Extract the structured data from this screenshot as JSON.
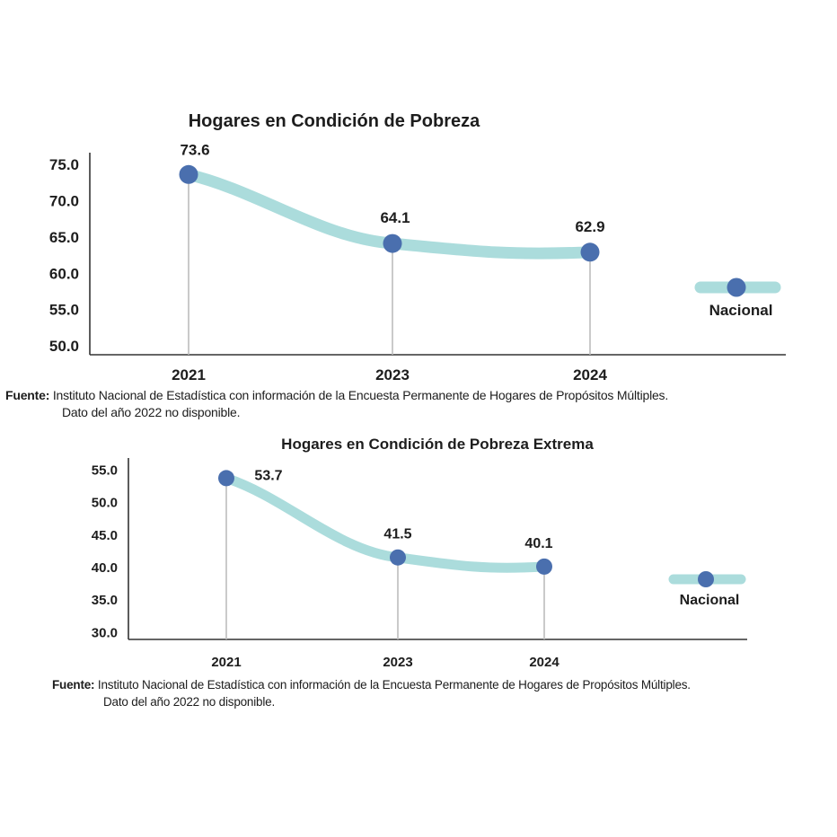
{
  "chart_data": [
    {
      "type": "line",
      "title": "Hogares en Condición de Pobreza",
      "categories": [
        "2021",
        "2023",
        "2024"
      ],
      "series": [
        {
          "name": "Nacional",
          "values": [
            73.6,
            64.1,
            62.9
          ]
        }
      ],
      "yticks": [
        "75.0",
        "70.0",
        "65.0",
        "60.0",
        "55.0",
        "50.0"
      ],
      "data_labels": [
        "73.6",
        "64.1",
        "62.9"
      ],
      "legend": "right",
      "grid": false
    },
    {
      "type": "line",
      "title": "Hogares en Condición de Pobreza Extrema",
      "categories": [
        "2021",
        "2023",
        "2024"
      ],
      "series": [
        {
          "name": "Nacional",
          "values": [
            53.7,
            41.5,
            40.1
          ]
        }
      ],
      "yticks": [
        "55.0",
        "50.0",
        "45.0",
        "40.0",
        "35.0",
        "30.0"
      ],
      "data_labels": [
        "53.7",
        "41.5",
        "40.1"
      ],
      "legend": "right",
      "grid": false
    }
  ],
  "sources": [
    {
      "label": "Fuente:",
      "line1": "Instituto Nacional de Estadística con información de la Encuesta Permanente de Hogares de Propósitos Múltiples.",
      "line2": "Dato del año 2022 no disponible."
    },
    {
      "label": "Fuente:",
      "line1": "Instituto Nacional de Estadística con información de la Encuesta Permanente de Hogares de Propósitos Múltiples.",
      "line2": "Dato del año 2022 no disponible."
    }
  ],
  "colors": {
    "line": "#abdcdc",
    "marker": "#4a6fae",
    "axis": "#333333",
    "drop": "#bdbdbd"
  }
}
